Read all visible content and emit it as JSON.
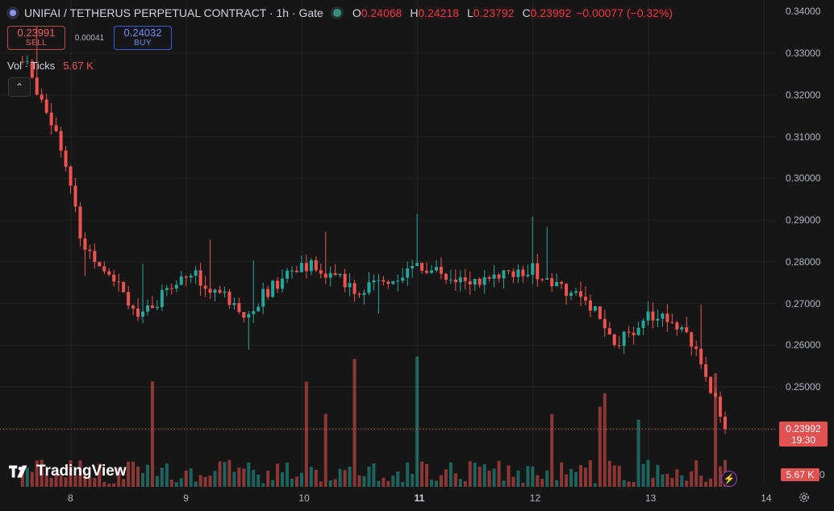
{
  "header": {
    "title": "UNIFAI / TETHERUS PERPETUAL CONTRACT · 1h · Gate",
    "open_key": "O",
    "open": "0.24068",
    "high_key": "H",
    "high": "0.24218",
    "low_key": "L",
    "low": "0.23792",
    "close_key": "C",
    "close": "0.23992",
    "change": "−0.00077 (−0.32%)"
  },
  "trade": {
    "sell_price": "0.23991",
    "sell_label": "SELL",
    "spread": "0.00041",
    "buy_price": "0.24032",
    "buy_label": "BUY"
  },
  "volume_legend": {
    "label": "Vol · Ticks",
    "value": "5.67 K"
  },
  "price_axis": {
    "labels": [
      "0.34000",
      "0.33000",
      "0.32000",
      "0.31000",
      "0.30000",
      "0.29000",
      "0.28000",
      "0.27000",
      "0.26000",
      "0.25000",
      "0.24000"
    ],
    "current_price": "0.23992",
    "countdown": "19:30",
    "volume_tag": "5.67 K",
    "zero_label": "0"
  },
  "time_axis": {
    "labels": [
      "8",
      "9",
      "10",
      "11",
      "12",
      "13",
      "14"
    ],
    "highlighted": "11"
  },
  "brand": {
    "name": "TradingView"
  },
  "colors": {
    "up": "#26a69a",
    "down": "#ef5350",
    "background": "#161616",
    "grid": "#232323"
  },
  "icons": {
    "settings": "gear-icon",
    "collapse": "chevron-up-icon",
    "lightning": "lightning-icon"
  },
  "chart_data": {
    "type": "candlestick",
    "interval": "1h",
    "ylim": [
      0.234,
      0.342
    ],
    "x_ticks": [
      "8",
      "9",
      "10",
      "11",
      "12",
      "13",
      "14"
    ],
    "y_ticks": [
      0.33,
      0.32,
      0.31,
      0.3,
      0.29,
      0.28,
      0.27,
      0.26,
      0.25,
      0.24
    ],
    "price_key_points": [
      {
        "day": 7.6,
        "price": 0.328
      },
      {
        "day": 7.9,
        "price": 0.31
      },
      {
        "day": 8.1,
        "price": 0.284
      },
      {
        "day": 8.4,
        "price": 0.276
      },
      {
        "day": 8.6,
        "price": 0.266
      },
      {
        "day": 9.0,
        "price": 0.278
      },
      {
        "day": 9.5,
        "price": 0.268
      },
      {
        "day": 10.0,
        "price": 0.28
      },
      {
        "day": 10.5,
        "price": 0.273
      },
      {
        "day": 11.0,
        "price": 0.279
      },
      {
        "day": 11.5,
        "price": 0.275
      },
      {
        "day": 12.0,
        "price": 0.278
      },
      {
        "day": 12.5,
        "price": 0.27
      },
      {
        "day": 12.7,
        "price": 0.259
      },
      {
        "day": 13.0,
        "price": 0.268
      },
      {
        "day": 13.3,
        "price": 0.265
      },
      {
        "day": 13.5,
        "price": 0.252
      },
      {
        "day": 13.7,
        "price": 0.2399
      }
    ],
    "last_close": 0.23992,
    "last_volume": "5.67 K"
  }
}
